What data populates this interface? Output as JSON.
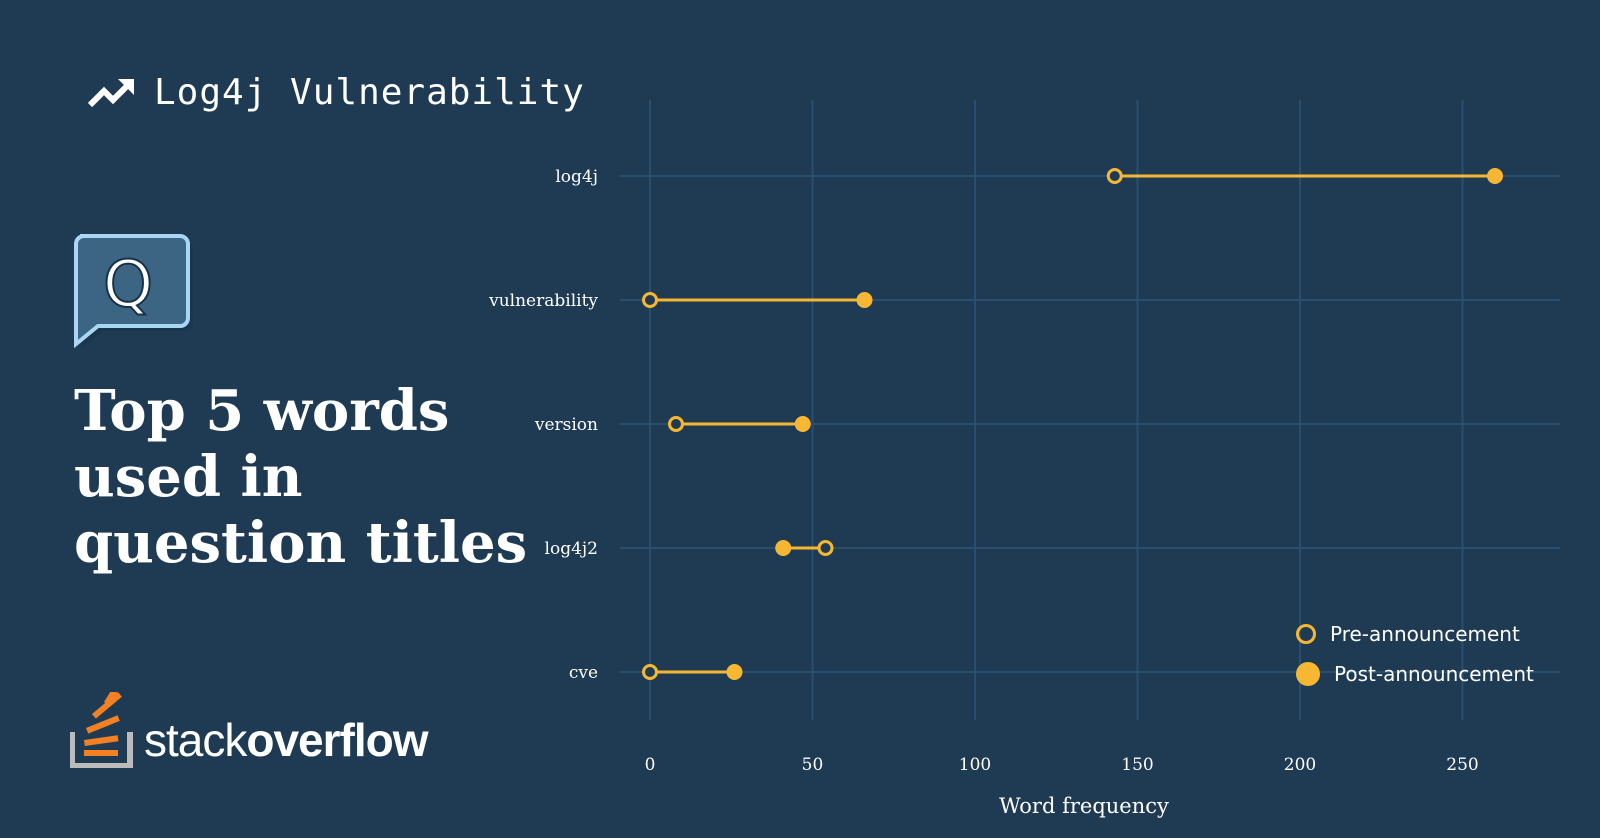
{
  "header": {
    "title": "Log4j Vulnerability",
    "icon": "trending-up-icon"
  },
  "badge": {
    "icon": "question-bubble-icon",
    "letter": "Q"
  },
  "headline": {
    "lines": [
      "Top 5 words",
      "used in",
      "question titles"
    ]
  },
  "brand": {
    "name_light": "stack",
    "name_bold": "overflow",
    "icon": "stackoverflow-logo-icon"
  },
  "colors": {
    "background": "#1f3b54",
    "grid": "#2a4f6e",
    "accent": "#f7b733",
    "text": "#ffffff"
  },
  "legend": {
    "pre_label": "Pre-announcement",
    "post_label": "Post-announcement"
  },
  "chart_data": {
    "type": "dumbbell",
    "categories": [
      "log4j",
      "vulnerability",
      "version",
      "log4j2",
      "cve"
    ],
    "series": [
      {
        "name": "Pre-announcement",
        "values": [
          143,
          0,
          8,
          54,
          0
        ]
      },
      {
        "name": "Post-announcement",
        "values": [
          260,
          66,
          47,
          41,
          26
        ]
      }
    ],
    "xlabel": "Word frequency",
    "xlim": [
      0,
      275
    ],
    "xticks": [
      0,
      50,
      100,
      150,
      200,
      250
    ],
    "grid": true,
    "legend_position": "bottom-right"
  }
}
